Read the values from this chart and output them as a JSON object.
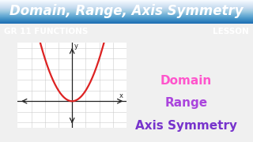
{
  "title": "Domain, Range, Axis Symmetry",
  "title_color": "#FFFFFF",
  "title_bg_top": "#55BBEE",
  "title_bg_bottom": "#2299DD",
  "subtitle": "GR 11 FUNCTIONS",
  "subtitle_right": "LESSON",
  "subtitle_bg_color": "#DD1111",
  "subtitle_text_color": "#FFFFFF",
  "body_bg_color": "#F0F0F0",
  "right_labels": [
    "Domain",
    "Range",
    "Axis Symmetry"
  ],
  "right_label_colors": [
    "#FF55CC",
    "#AA44DD",
    "#7733CC"
  ],
  "parabola_color": "#DD2222",
  "grid_color": "#CCCCCC",
  "axis_color": "#222222",
  "graph_bg": "#FFFFFF"
}
